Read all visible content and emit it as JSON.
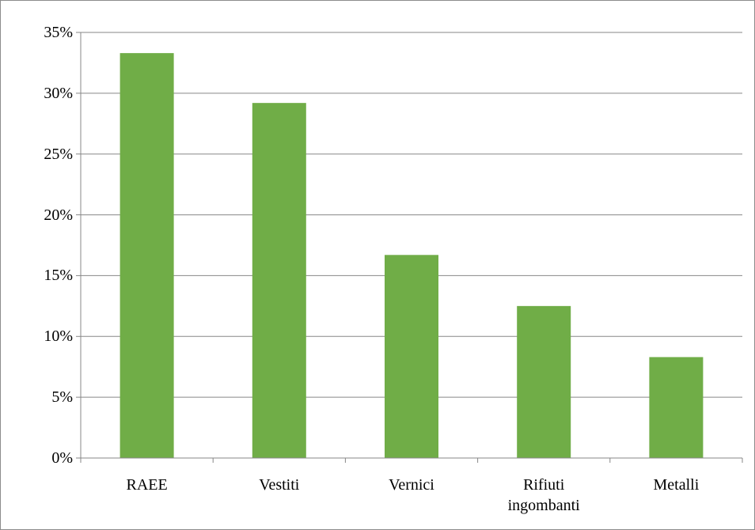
{
  "chart_data": {
    "type": "bar",
    "categories": [
      "RAEE",
      "Vestiti",
      "Vernici",
      "Rifiuti ingombanti",
      "Metalli"
    ],
    "values": [
      33.3,
      29.2,
      16.7,
      12.5,
      8.3
    ],
    "color": "#70ad47",
    "ylim": [
      0,
      35
    ],
    "yticks": [
      {
        "value": 0,
        "label": "0%"
      },
      {
        "value": 5,
        "label": "5%"
      },
      {
        "value": 10,
        "label": "10%"
      },
      {
        "value": 15,
        "label": "15%"
      },
      {
        "value": 20,
        "label": "20%"
      },
      {
        "value": 25,
        "label": "25%"
      },
      {
        "value": 30,
        "label": "30%"
      },
      {
        "value": 35,
        "label": "35%"
      }
    ],
    "grid": true
  }
}
